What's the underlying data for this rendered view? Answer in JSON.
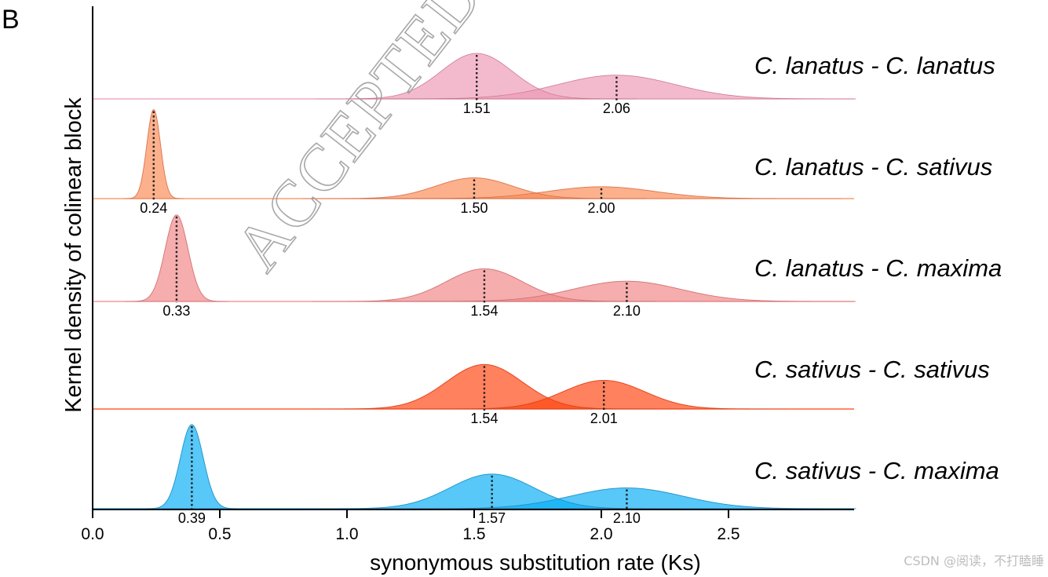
{
  "panel_label": "B",
  "watermark": "ACCEPTED M",
  "credit": "CSDN @阅读，不打瞌睡",
  "chart_data": {
    "type": "area",
    "subtype": "ridgeline kernel density",
    "xlabel": "synonymous substitution rate (Ks)",
    "ylabel": "Kernel density of colinear block",
    "xlim": [
      0,
      3.0
    ],
    "xticks": [
      "0.0",
      "0.5",
      "1.0",
      "1.5",
      "2.0",
      "2.5"
    ],
    "series": [
      {
        "name": "C. lanatus - C. lanatus",
        "color": "#EE9AB6",
        "components": [
          {
            "peak": 1.51,
            "sd": 0.14,
            "amp": 0.92
          },
          {
            "peak": 2.06,
            "sd": 0.23,
            "amp": 0.48
          }
        ],
        "peak_labels": [
          "1.51",
          "2.06"
        ]
      },
      {
        "name": "C. lanatus - C. sativus",
        "color": "#FA8A55",
        "components": [
          {
            "peak": 0.24,
            "sd": 0.027,
            "amp": 1.8
          },
          {
            "peak": 1.5,
            "sd": 0.15,
            "amp": 0.42
          },
          {
            "peak": 2.0,
            "sd": 0.21,
            "amp": 0.24
          }
        ],
        "peak_labels": [
          "0.24",
          "1.50",
          "2.00"
        ]
      },
      {
        "name": "C. lanatus - C. maxima",
        "color": "#F08688",
        "components": [
          {
            "peak": 0.33,
            "sd": 0.045,
            "amp": 1.75
          },
          {
            "peak": 1.54,
            "sd": 0.15,
            "amp": 0.66
          },
          {
            "peak": 2.1,
            "sd": 0.21,
            "amp": 0.41
          }
        ],
        "peak_labels": [
          "0.33",
          "1.54",
          "2.10"
        ]
      },
      {
        "name": "C. sativus - C. sativus",
        "color": "#FF4510",
        "components": [
          {
            "peak": 1.54,
            "sd": 0.15,
            "amp": 0.9
          },
          {
            "peak": 2.01,
            "sd": 0.16,
            "amp": 0.58
          }
        ],
        "peak_labels": [
          "1.54",
          "2.01"
        ]
      },
      {
        "name": "C. sativus - C. maxima",
        "color": "#08AEF5",
        "components": [
          {
            "peak": 0.39,
            "sd": 0.045,
            "amp": 1.7
          },
          {
            "peak": 1.57,
            "sd": 0.165,
            "amp": 0.7
          },
          {
            "peak": 2.1,
            "sd": 0.22,
            "amp": 0.42
          }
        ],
        "peak_labels": [
          "0.39",
          "1.57",
          "2.10"
        ]
      }
    ],
    "grid": false,
    "legend": "series names right of each ridge"
  }
}
